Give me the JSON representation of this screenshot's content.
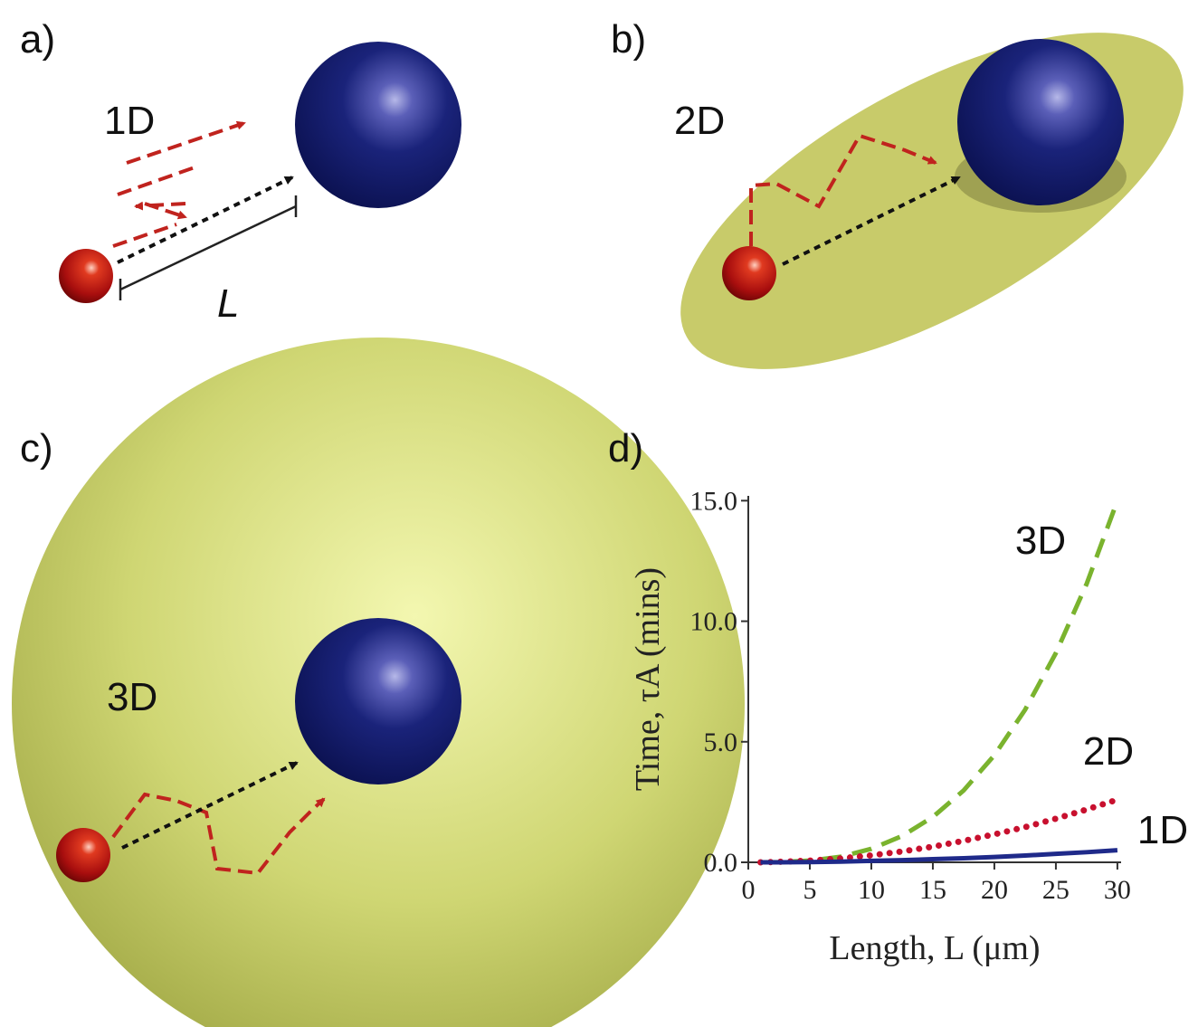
{
  "panels": [
    {
      "label": "a)",
      "dimension": "1D",
      "distance": "L"
    },
    {
      "label": "b)",
      "dimension": "2D"
    },
    {
      "label": "c)",
      "dimension": "3D"
    },
    {
      "label": "d)"
    }
  ],
  "chart_data": {
    "type": "line",
    "xlabel": "Length, L (μm)",
    "ylabel": "Time, τA (mins)",
    "x": [
      1,
      2.5,
      5,
      7.5,
      10,
      12.5,
      15,
      17.5,
      20,
      22.5,
      25,
      27.5,
      30
    ],
    "series": [
      {
        "name": "3D",
        "color": "#7ab32e",
        "style": "dashed",
        "values": [
          0.0,
          0.01,
          0.07,
          0.23,
          0.56,
          1.09,
          1.88,
          2.98,
          4.44,
          6.33,
          8.68,
          11.55,
          15.0
        ]
      },
      {
        "name": "2D",
        "color": "#c8102e",
        "style": "dotted",
        "values": [
          0.0,
          0.02,
          0.07,
          0.16,
          0.29,
          0.45,
          0.65,
          0.89,
          1.16,
          1.46,
          1.81,
          2.19,
          2.6
        ]
      },
      {
        "name": "1D",
        "color": "#1f2a8a",
        "style": "solid",
        "values": [
          0.0,
          0.0,
          0.01,
          0.03,
          0.06,
          0.09,
          0.13,
          0.17,
          0.22,
          0.28,
          0.35,
          0.42,
          0.5
        ]
      }
    ],
    "xlim": [
      0,
      30.3
    ],
    "xticks": [
      0,
      5,
      10,
      15,
      20,
      25,
      30
    ],
    "ylim": [
      0,
      15.2
    ],
    "yticks": [
      {
        "value": 0,
        "label": "0.0"
      },
      {
        "value": 5,
        "label": "5.0"
      },
      {
        "value": 10,
        "label": "10.0"
      },
      {
        "value": 15,
        "label": "15.0"
      }
    ]
  }
}
